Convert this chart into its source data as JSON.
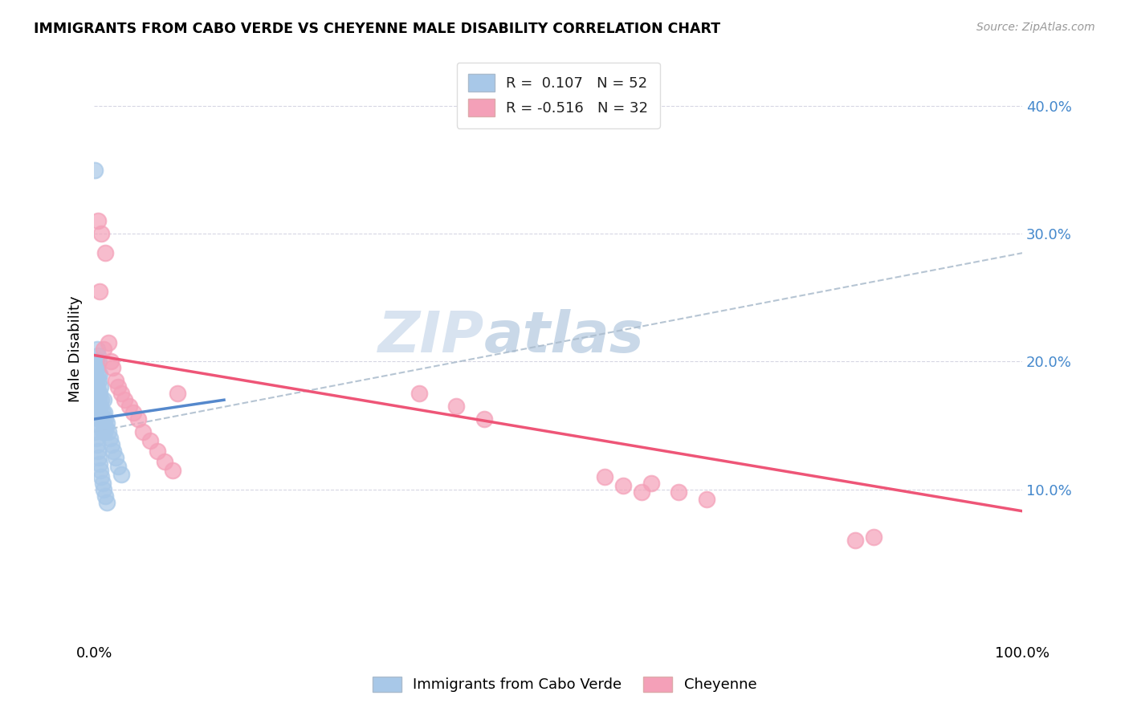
{
  "title": "IMMIGRANTS FROM CABO VERDE VS CHEYENNE MALE DISABILITY CORRELATION CHART",
  "source": "Source: ZipAtlas.com",
  "ylabel": "Male Disability",
  "xlim": [
    0.0,
    1.0
  ],
  "ylim": [
    -0.02,
    0.44
  ],
  "legend_r1": "R =  0.107",
  "legend_n1": "N = 52",
  "legend_r2": "R = -0.516",
  "legend_n2": "N = 32",
  "color_blue": "#a8c8e8",
  "color_pink": "#f4a0b8",
  "line_blue": "#5588cc",
  "line_pink": "#ee5577",
  "watermark_zip": "ZIP",
  "watermark_atlas": "atlas",
  "cabo_verde_x": [
    0.001,
    0.001,
    0.002,
    0.002,
    0.002,
    0.003,
    0.003,
    0.003,
    0.003,
    0.004,
    0.004,
    0.004,
    0.005,
    0.005,
    0.005,
    0.005,
    0.006,
    0.006,
    0.006,
    0.007,
    0.007,
    0.007,
    0.008,
    0.008,
    0.009,
    0.009,
    0.01,
    0.01,
    0.011,
    0.011,
    0.012,
    0.013,
    0.014,
    0.015,
    0.017,
    0.019,
    0.021,
    0.023,
    0.026,
    0.029,
    0.001,
    0.002,
    0.003,
    0.004,
    0.005,
    0.006,
    0.007,
    0.008,
    0.009,
    0.01,
    0.012,
    0.014
  ],
  "cabo_verde_y": [
    0.35,
    0.195,
    0.2,
    0.185,
    0.175,
    0.21,
    0.195,
    0.18,
    0.165,
    0.205,
    0.19,
    0.175,
    0.2,
    0.185,
    0.17,
    0.155,
    0.19,
    0.175,
    0.16,
    0.18,
    0.165,
    0.15,
    0.17,
    0.155,
    0.16,
    0.145,
    0.17,
    0.155,
    0.16,
    0.145,
    0.155,
    0.148,
    0.152,
    0.145,
    0.14,
    0.135,
    0.13,
    0.125,
    0.118,
    0.112,
    0.145,
    0.14,
    0.135,
    0.13,
    0.125,
    0.12,
    0.115,
    0.11,
    0.105,
    0.1,
    0.095,
    0.09
  ],
  "cheyenne_x": [
    0.004,
    0.006,
    0.008,
    0.01,
    0.012,
    0.015,
    0.018,
    0.02,
    0.023,
    0.026,
    0.029,
    0.033,
    0.038,
    0.042,
    0.047,
    0.053,
    0.06,
    0.068,
    0.076,
    0.085,
    0.35,
    0.39,
    0.42,
    0.55,
    0.57,
    0.59,
    0.82,
    0.84,
    0.6,
    0.63,
    0.66,
    0.09
  ],
  "cheyenne_y": [
    0.31,
    0.255,
    0.3,
    0.21,
    0.285,
    0.215,
    0.2,
    0.195,
    0.185,
    0.18,
    0.175,
    0.17,
    0.165,
    0.16,
    0.155,
    0.145,
    0.138,
    0.13,
    0.122,
    0.115,
    0.175,
    0.165,
    0.155,
    0.11,
    0.103,
    0.098,
    0.06,
    0.063,
    0.105,
    0.098,
    0.092,
    0.175
  ],
  "blue_line_x0": 0.0,
  "blue_line_y0": 0.155,
  "blue_line_x1": 0.14,
  "blue_line_y1": 0.17,
  "pink_line_x0": 0.0,
  "pink_line_y0": 0.205,
  "pink_line_x1": 1.0,
  "pink_line_y1": 0.083,
  "dash_line_x0": 0.0,
  "dash_line_y0": 0.145,
  "dash_line_x1": 1.0,
  "dash_line_y1": 0.285
}
